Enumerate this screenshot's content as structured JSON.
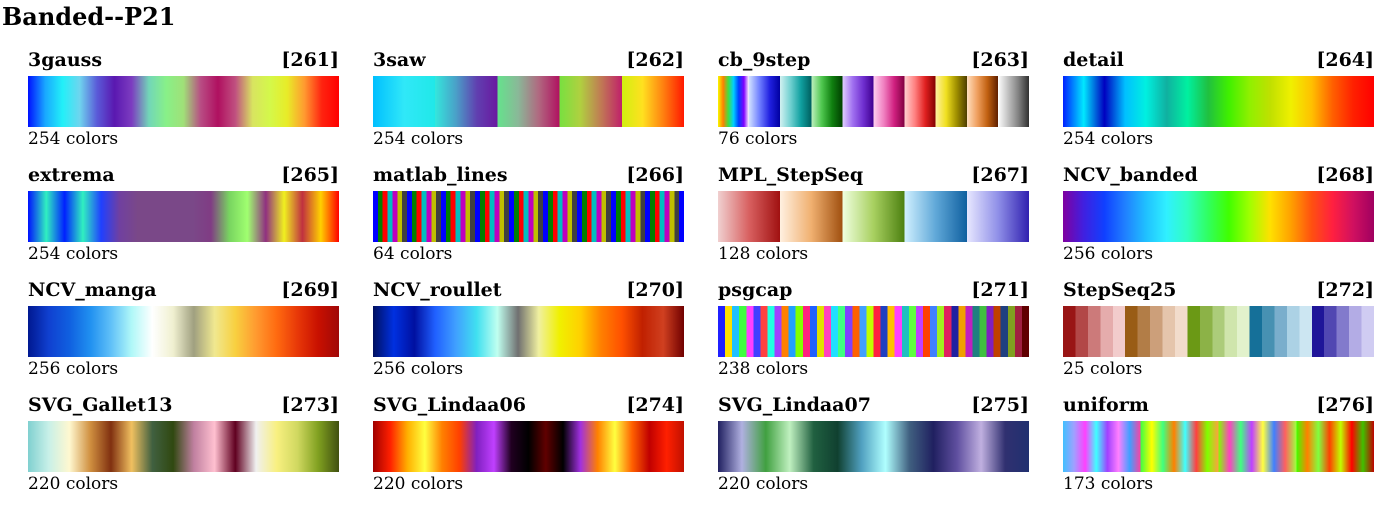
{
  "title": "Banded--P21",
  "count_suffix": "colors",
  "colormaps": [
    {
      "name": "3gauss",
      "index": "[261]",
      "count": "254",
      "colors": "#0010ff,#19a8ff,#22f0f8,#6fd4ee,#5a5ad8,#5a18b0,#7c3cc0,#72d6b8,#88f088,#a0e078,#b84c84,#b01060,#c05080,#d8e460,#d4f84a,#e8ec28,#ff9a30,#ff2410,#ff0000"
    },
    {
      "name": "3saw",
      "index": "[262]",
      "count": "254",
      "colors": "#00bfff,#30e8f8,#20e8e8|#34e6dc,#4aa0c8,#6040b0,#6a18a0|#64e28c,#8ab898,#b06880,#b01060|#78e040,#b0d040,#c07a54,#c0206a|#d0f010,#ffe020,#ff8010,#ff1800"
    },
    {
      "name": "cb_9step",
      "index": "[263]",
      "count": "76",
      "colors": "#f8f800,#ff8000,#40e040,#00d0ff,#0040ff,#8000ff,#ffffff|#d0e0ff,#7080ff,#2020e0,#0000a0|#d0f0f0,#70d0d0,#10a0a0,#006060|#c0f0c0,#50c850,#108010,#004000|#e0d0ff,#a070f0,#7030d0,#400090|#ffd0f0,#f080c0,#d02080,#800040|#ffd0d0,#ff8080,#e02020,#800000|#fff0a0,#f0e020,#a09000,#504000|#ffe0c0,#f0a060,#c06010,#602000|#ffffff,#c0c0c0,#808080,#303030"
    },
    {
      "name": "detail",
      "index": "[264]",
      "count": "254",
      "colors": "#0020ff,#00e8ff,#0000c0,#00c0ff,#00f0e0,#10b0a0,#00f0a0,#20c040,#40f000,#90f000,#c0e000,#f0f000,#ffc000,#ff6000,#ff2000,#ff0000"
    },
    {
      "name": "extrema",
      "index": "[265]",
      "count": "254",
      "colors": "#0010ff,#30f0c0,#0020ff,#30f0c0,#2040ff,#7040a0,#7a4888,#7a4888,#7a4888,#7a4888,#803c84,#78d460,#a0ff70,#903080,#f0f020,#c03040,#ffd000,#ff0000"
    },
    {
      "name": "matlab_lines",
      "index": "[266]",
      "count": "64",
      "colors": "#0000ff|#008000|#ff0000|#00bfbf|#bf00bf|#bfbf00|#404040|#0000ff|#008000|#ff0000|#00bfbf|#bf00bf|#bfbf00|#404040|#0000ff|#008000|#ff0000|#00bfbf|#bf00bf|#bfbf00|#404040|#0000ff|#008000|#ff0000|#00bfbf|#bf00bf|#bfbf00|#404040|#0000ff|#008000|#ff0000|#00bfbf|#bf00bf|#bfbf00|#404040|#0000ff|#008000|#ff0000|#00bfbf|#bf00bf|#bfbf00|#404040|#0000ff|#008000|#ff0000|#00bfbf|#bf00bf|#bfbf00|#404040|#0000ff|#008000|#ff0000|#00bfbf|#bf00bf|#bfbf00|#404040|#0000ff|#008000|#ff0000|#00bfbf|#bf00bf|#bfbf00|#404040|#0000ff"
    },
    {
      "name": "MPL_StepSeq",
      "index": "[267]",
      "count": "128",
      "colors": "#f0d0d0,#d86060,#a01010|#fff0e0,#f0b070,#a05010|#f0ffe0,#a8d060,#4c8010|#d0f0ff,#60a8d8,#1060a0|#e8e8ff,#9090e8,#3020b0"
    },
    {
      "name": "NCV_banded",
      "index": "[268]",
      "count": "256",
      "colors": "#8000a0,#4020e0,#1040ff,#2080ff,#20c0ff,#30f0ff,#30ffc0,#30ff60,#40ff00,#a0ff00,#ffe000,#ffa000,#ff5010,#ff2040,#d01060,#a00060"
    },
    {
      "name": "NCV_manga",
      "index": "[269]",
      "count": "256",
      "colors": "#001890,#1040d0,#1060e0,#2090f0,#60c0f8,#b0f8f8,#ffffff,#f0f0d0,#a0a080,#f0e890,#f8d040,#ff9a30,#ff6a10,#e83808,#c81000,#a00808"
    },
    {
      "name": "NCV_roullet",
      "index": "[270]",
      "count": "256",
      "colors": "#001060,#0030e0,#0010a0,#2060ff,#40a0ff,#40e0f0,#c0fff0,#707070,#f0f0a0,#f0f000,#ffd000,#ff8000,#ff5000,#c02000,#d04020,#700000"
    },
    {
      "name": "psgcap",
      "index": "[271]",
      "count": "238",
      "colors": "#2020ff|#ffe000|#20c0ff|#40ff40|#ff40ff|#4040ff|#ff4040|#20ffe0|#a040ff|#ff8000|#20a0ff|#80ff00|#ff2080|#2060ff|#e0e000|#ff40c0|#20e0ff|#40ff80|#8040ff|#ff6000|#40a0ff|#c0ff00|#ff2040|#2040c0|#ffc000|#ff40ff|#20c0c0|#60ff40|#c040ff|#ff4000|#4080ff|#a0f020|#e02060|#2020a0|#f0a000|#c020c0|#208080|#40c040|#8020c0|#c04000|#204080|#80a020|#a02040|#600000"
    },
    {
      "name": "StepSeq25",
      "index": "[272]",
      "count": "25",
      "colors": "#991515|#b24747|#cc7a7a|#e5acac|#f2cccc|#995c15|#b27d47|#cc9f7a|#e5c5ac|#f2dccc|#6b9915|#8cb247|#accc7a|#cfe5ac|#e2f2cc|#157099|#4791b2|#7aaecc|#acd2e5|#cce6f2|#1f1599|#5147b2|#827acc|#b3ace5|#d0ccf2"
    },
    {
      "name": "SVG_Gallet13",
      "index": "[273]",
      "count": "220",
      "colors": "#80d0d0,#c8f0e8,#fff8d0,#d09040,#803010,#f0c060,#406040,#304810,#c080a0,#ffc0d0,#600020,#f0f0f0,#f8f080,#d0d860,#80a020,#405010"
    },
    {
      "name": "SVG_Lindaa06",
      "index": "[274]",
      "count": "220",
      "colors": "#a00000,#ff2000,#ffb000,#ffff40,#ff8000,#ff4000,#8020c0,#c040ff,#200020,#000000,#600000,#000000,#a030e0,#ff8000,#ffff40,#ff6000,#c00000,#ff2000,#c01000"
    },
    {
      "name": "SVG_Lindaa07",
      "index": "[275]",
      "count": "220",
      "colors": "#202060,#b0b0e0,#40a040,#c0f0c0,#206040,#104030,#50a0c0,#b0ffff,#406080,#202060,#6050a0,#c0b0e0,#303070,#203070"
    },
    {
      "name": "uniform",
      "index": "[276]",
      "count": "173",
      "colors": "#40c0ff,#a0a0ff,#ff40ff,#40ffff,#a040ff,#ff80ff,#40a0ff,#ff40a0|#40ff40,#ffff00,#40ff80,#ff8000,#40ffff,#ff4040,#80ff00,#ffa040|#80ff00,#ff40c0,#40ff80,#c040ff,#ffff40,#4080ff,#ff6060,#a0ff40|#40ff00,#ff8000,#80ff40,#ff4000,#c0ff00,#ff0000,#40c000,#c00000"
    }
  ]
}
